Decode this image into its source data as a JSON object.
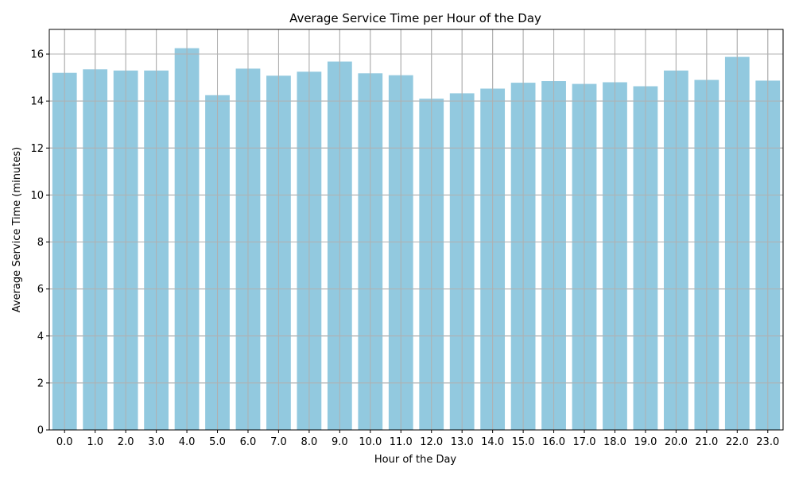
{
  "chart_data": {
    "type": "bar",
    "title": "Average Service Time per Hour of the Day",
    "xlabel": "Hour of the Day",
    "ylabel": "Average Service Time (minutes)",
    "categories": [
      "0.0",
      "1.0",
      "2.0",
      "3.0",
      "4.0",
      "5.0",
      "6.0",
      "7.0",
      "8.0",
      "9.0",
      "10.0",
      "11.0",
      "12.0",
      "13.0",
      "14.0",
      "15.0",
      "16.0",
      "17.0",
      "18.0",
      "19.0",
      "20.0",
      "21.0",
      "22.0",
      "23.0"
    ],
    "values": [
      15.2,
      15.35,
      15.3,
      15.3,
      16.25,
      14.25,
      15.38,
      15.08,
      15.25,
      15.68,
      15.18,
      15.1,
      14.1,
      14.33,
      14.53,
      14.78,
      14.85,
      14.73,
      14.8,
      14.63,
      15.3,
      14.9,
      15.88,
      14.87
    ],
    "ylim": [
      0,
      17.05
    ],
    "yticks": [
      0,
      2,
      4,
      6,
      8,
      10,
      12,
      14,
      16
    ],
    "grid": true,
    "bar_color": "#92c9df",
    "grid_color": "#b0b0b0"
  }
}
